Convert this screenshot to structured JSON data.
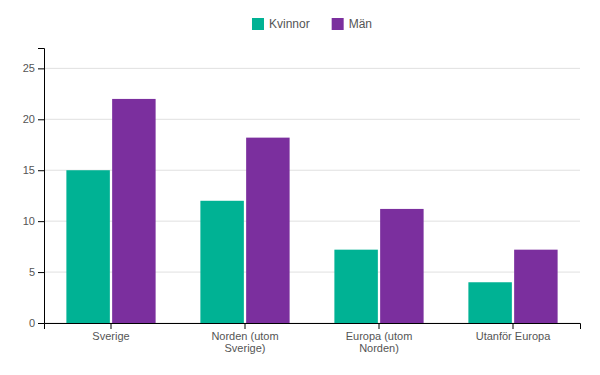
{
  "chart_data": {
    "type": "bar",
    "categories": [
      "Sverige",
      "Norden (utom\nSverige)",
      "Europa (utom\nNorden)",
      "Utanför Europa"
    ],
    "series": [
      {
        "name": "Kvinnor",
        "color": "#00b294",
        "values": [
          15,
          12,
          7.2,
          4
        ]
      },
      {
        "name": "Män",
        "color": "#7b2f9e",
        "values": [
          22,
          18.2,
          11.2,
          7.2
        ]
      }
    ],
    "ylim": [
      0,
      27
    ],
    "yticks": [
      0,
      5,
      10,
      15,
      20,
      25
    ],
    "grid": true,
    "legend": "top"
  }
}
